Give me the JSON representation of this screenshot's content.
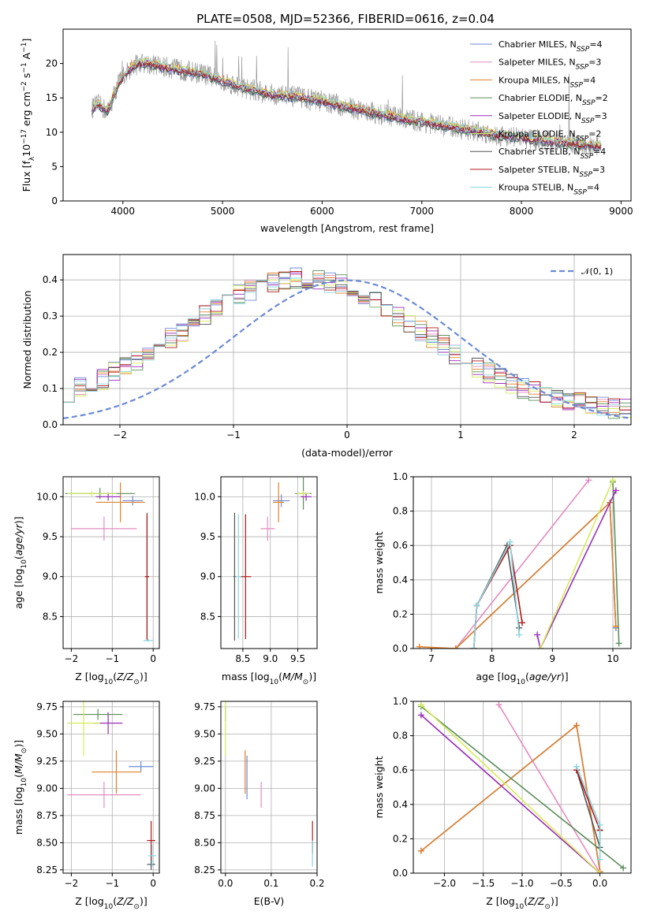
{
  "figure": {
    "title": "PLATE=0508, MJD=52366, FIBERID=0616, z=0.04"
  },
  "colors": {
    "Chabrier MILES": "#6c8ad6",
    "Salpeter MILES": "#e48bc0",
    "Kroupa MILES": "#e0802a",
    "Chabrier ELODIE": "#5c8f5c",
    "Salpeter ELODIE": "#9a2fb8",
    "Kroupa ELODIE": "#d6ea5a",
    "Chabrier STELIB": "#555555",
    "Salpeter STELIB": "#b01a1a",
    "Kroupa STELIB": "#8ad6df",
    "data": "#9a9a9a",
    "normal": "#6c8ad6"
  },
  "legend_spectrum": [
    {
      "name": "Chabrier MILES",
      "nssp": "4"
    },
    {
      "name": "Salpeter MILES",
      "nssp": "3"
    },
    {
      "name": "Kroupa MILES",
      "nssp": "4"
    },
    {
      "name": "Chabrier ELODIE",
      "nssp": "2"
    },
    {
      "name": "Salpeter ELODIE",
      "nssp": "3"
    },
    {
      "name": "Kroupa ELODIE",
      "nssp": "2"
    },
    {
      "name": "Chabrier STELIB",
      "nssp": "4"
    },
    {
      "name": "Salpeter STELIB",
      "nssp": "3"
    },
    {
      "name": "Kroupa STELIB",
      "nssp": "4"
    }
  ],
  "legend_hist": {
    "label": "𝒩(0, 1)"
  },
  "chart_data": [
    {
      "id": "spectrum",
      "type": "line",
      "xlabel": "wavelength [Angstrom, rest frame]",
      "ylabel": "Flux [f_λ 10^-17 erg cm^-2 s^-1 A^-1]",
      "xlim": [
        3400,
        9100
      ],
      "ylim": [
        0,
        25
      ],
      "xticks": [
        4000,
        5000,
        6000,
        7000,
        8000,
        9000
      ],
      "yticks": [
        0,
        5,
        10,
        15,
        20
      ],
      "continuum": [
        [
          3690,
          13.5
        ],
        [
          3750,
          14
        ],
        [
          3850,
          13
        ],
        [
          3950,
          17
        ],
        [
          4050,
          19
        ],
        [
          4150,
          20
        ],
        [
          4250,
          20
        ],
        [
          4400,
          19.5
        ],
        [
          4600,
          19
        ],
        [
          4800,
          18.5
        ],
        [
          5000,
          17.5
        ],
        [
          5200,
          16.5
        ],
        [
          5500,
          15.5
        ],
        [
          5800,
          15
        ],
        [
          6000,
          14.5
        ],
        [
          6200,
          13.8
        ],
        [
          6400,
          13.2
        ],
        [
          6600,
          12.6
        ],
        [
          6800,
          12
        ],
        [
          7000,
          11.5
        ],
        [
          7200,
          11
        ],
        [
          7400,
          10.5
        ],
        [
          7600,
          10
        ],
        [
          7800,
          9.5
        ],
        [
          8000,
          9.2
        ],
        [
          8200,
          8.8
        ],
        [
          8500,
          8.3
        ],
        [
          8800,
          8
        ]
      ]
    },
    {
      "id": "residual-hist",
      "type": "line",
      "xlabel": "(data-model)/error",
      "ylabel": "Normed distribution",
      "xlim": [
        -2.5,
        2.5
      ],
      "ylim": [
        0,
        0.47
      ],
      "xticks": [
        -2,
        -1,
        0,
        1,
        2
      ],
      "yticks": [
        0.0,
        0.1,
        0.2,
        0.3,
        0.4
      ],
      "normal": {
        "mean": 0,
        "sigma": 1
      }
    },
    {
      "id": "age-vs-z",
      "type": "scatter",
      "xlabel": "Z [log10(Z/Z⊙)]",
      "ylabel": "age  [log10(age/yr)]",
      "xlim": [
        -2.2,
        0.15
      ],
      "ylim": [
        8.1,
        10.25
      ],
      "xticks": [
        -2,
        -1,
        0
      ],
      "yticks": [
        8.5,
        9.0,
        9.5,
        10.0
      ],
      "points": [
        {
          "model": "Chabrier MILES",
          "x": -0.5,
          "y": 9.95,
          "xerr": 0.25,
          "yerr": 0.06
        },
        {
          "model": "Salpeter MILES",
          "x": -1.2,
          "y": 9.6,
          "xerr": 0.8,
          "yerr": 0.15
        },
        {
          "model": "Kroupa MILES",
          "x": -0.8,
          "y": 9.93,
          "xerr": 0.6,
          "yerr": 0.25
        },
        {
          "model": "Chabrier ELODIE",
          "x": -1.3,
          "y": 10.04,
          "xerr": 0.85,
          "yerr": 0.07
        },
        {
          "model": "Salpeter ELODIE",
          "x": -1.1,
          "y": 10.0,
          "xerr": 0.3,
          "yerr": 0.05
        },
        {
          "model": "Kroupa ELODIE",
          "x": -1.5,
          "y": 10.04,
          "xerr": 0.6,
          "yerr": 0.03
        },
        {
          "model": "Chabrier STELIB",
          "x": -0.15,
          "y": 9.0,
          "xerr": 0.05,
          "yerr": 0.8
        },
        {
          "model": "Salpeter STELIB",
          "x": -0.15,
          "y": 9.0,
          "xerr": 0.05,
          "yerr": 0.78
        },
        {
          "model": "Kroupa STELIB",
          "x": -0.12,
          "y": 8.2,
          "xerr": 0.12,
          "yerr": 0.02
        }
      ]
    },
    {
      "id": "age-vs-mass",
      "type": "scatter",
      "xlabel": "mass [log10(M/M⊙)]",
      "ylabel": "",
      "xlim": [
        8.1,
        9.85
      ],
      "ylim": [
        8.1,
        10.25
      ],
      "xticks": [
        8.5,
        9.0,
        9.5
      ],
      "yticks": [
        8.5,
        9.0,
        9.5,
        10.0
      ],
      "points": [
        {
          "model": "Chabrier MILES",
          "x": 9.2,
          "y": 9.95,
          "xerr": 0.15,
          "yerr": 0.08
        },
        {
          "model": "Salpeter MILES",
          "x": 8.95,
          "y": 9.6,
          "xerr": 0.13,
          "yerr": 0.15
        },
        {
          "model": "Kroupa MILES",
          "x": 9.15,
          "y": 9.93,
          "xerr": 0.1,
          "yerr": 0.25
        },
        {
          "model": "Chabrier ELODIE",
          "x": 9.6,
          "y": 10.04,
          "xerr": 0.15,
          "yerr": 0.2
        },
        {
          "model": "Salpeter ELODIE",
          "x": 9.65,
          "y": 10.0,
          "xerr": 0.1,
          "yerr": 0.05
        },
        {
          "model": "Kroupa ELODIE",
          "x": 9.6,
          "y": 10.04,
          "xerr": 0.12,
          "yerr": 0.03
        },
        {
          "model": "Chabrier STELIB",
          "x": 8.35,
          "y": 9.0,
          "xerr": 0.02,
          "yerr": 0.8
        },
        {
          "model": "Salpeter STELIB",
          "x": 8.55,
          "y": 9.0,
          "xerr": 0.1,
          "yerr": 0.78
        },
        {
          "model": "Kroupa STELIB",
          "x": 8.42,
          "y": 9.0,
          "xerr": 0.05,
          "yerr": 0.78
        }
      ]
    },
    {
      "id": "weight-vs-age",
      "type": "line",
      "xlabel": "age  [log10(age/yr)]",
      "ylabel": "mass weight",
      "xlim": [
        6.7,
        10.3
      ],
      "ylim": [
        0,
        1
      ],
      "xticks": [
        7,
        8,
        9,
        10
      ],
      "yticks": [
        0.0,
        0.2,
        0.4,
        0.6,
        0.8,
        1.0
      ],
      "series": [
        {
          "model": "Chabrier MILES",
          "points": [
            [
              7.4,
              0
            ],
            [
              9.95,
              0.85
            ],
            [
              10.05,
              0.12
            ]
          ]
        },
        {
          "model": "Salpeter MILES",
          "points": [
            [
              7.4,
              0
            ],
            [
              9.6,
              0.98
            ]
          ]
        },
        {
          "model": "Kroupa MILES",
          "points": [
            [
              6.8,
              0.01
            ],
            [
              7.4,
              0
            ],
            [
              9.95,
              0.85
            ],
            [
              10.05,
              0.13
            ]
          ]
        },
        {
          "model": "Chabrier ELODIE",
          "points": [
            [
              10.0,
              0.97
            ],
            [
              10.1,
              0.03
            ]
          ]
        },
        {
          "model": "Salpeter ELODIE",
          "points": [
            [
              8.75,
              0.08
            ],
            [
              8.8,
              0
            ],
            [
              10.05,
              0.92
            ]
          ]
        },
        {
          "model": "Kroupa ELODIE",
          "points": [
            [
              8.8,
              0
            ],
            [
              10.0,
              0.98
            ]
          ]
        },
        {
          "model": "Chabrier STELIB",
          "points": [
            [
              7.7,
              0
            ],
            [
              7.75,
              0.25
            ],
            [
              8.25,
              0.6
            ],
            [
              8.45,
              0.12
            ]
          ]
        },
        {
          "model": "Salpeter STELIB",
          "points": [
            [
              7.7,
              0
            ],
            [
              7.75,
              0.25
            ],
            [
              8.3,
              0.6
            ],
            [
              8.5,
              0.15
            ]
          ]
        },
        {
          "model": "Kroupa STELIB",
          "points": [
            [
              7.7,
              0
            ],
            [
              7.75,
              0.25
            ],
            [
              8.3,
              0.62
            ],
            [
              8.45,
              0.08
            ]
          ]
        }
      ]
    },
    {
      "id": "mass-vs-z",
      "type": "scatter",
      "xlabel": "Z [log10(Z/Z⊙)]",
      "ylabel": "mass [log10(M/M⊙)]",
      "xlim": [
        -2.2,
        0.15
      ],
      "ylim": [
        8.22,
        9.8
      ],
      "xticks": [
        -2,
        -1,
        0
      ],
      "yticks": [
        8.25,
        8.5,
        8.75,
        9.0,
        9.25,
        9.5,
        9.75
      ],
      "points": [
        {
          "model": "Chabrier MILES",
          "x": -0.3,
          "y": 9.2,
          "xerr": 0.3,
          "yerr": 0.05
        },
        {
          "model": "Salpeter MILES",
          "x": -1.2,
          "y": 8.94,
          "xerr": 0.9,
          "yerr": 0.12
        },
        {
          "model": "Kroupa MILES",
          "x": -0.9,
          "y": 9.15,
          "xerr": 0.6,
          "yerr": 0.2
        },
        {
          "model": "Chabrier ELODIE",
          "x": -1.35,
          "y": 9.68,
          "xerr": 0.6,
          "yerr": 0.05
        },
        {
          "model": "Salpeter ELODIE",
          "x": -1.1,
          "y": 9.6,
          "xerr": 0.35,
          "yerr": 0.1
        },
        {
          "model": "Kroupa ELODIE",
          "x": -1.7,
          "y": 9.6,
          "xerr": 0.4,
          "yerr": 0.3
        },
        {
          "model": "Chabrier STELIB",
          "x": -0.05,
          "y": 8.3,
          "xerr": 0.1,
          "yerr": 0.05
        },
        {
          "model": "Salpeter STELIB",
          "x": -0.05,
          "y": 8.52,
          "xerr": 0.1,
          "yerr": 0.18
        },
        {
          "model": "Kroupa STELIB",
          "x": -0.03,
          "y": 8.38,
          "xerr": 0.1,
          "yerr": 0.1
        }
      ]
    },
    {
      "id": "mass-vs-ebv",
      "type": "scatter",
      "xlabel": "E(B-V)",
      "ylabel": "",
      "xlim": [
        -0.01,
        0.2
      ],
      "ylim": [
        8.22,
        9.8
      ],
      "xticks": [
        0.0,
        0.1,
        0.2
      ],
      "yticks": [
        8.25,
        8.5,
        8.75,
        9.0,
        9.25,
        9.5,
        9.75
      ],
      "points": [
        {
          "model": "Chabrier MILES",
          "x": 0.047,
          "y": 9.1,
          "xerr": 0,
          "yerr": 0.2
        },
        {
          "model": "Salpeter MILES",
          "x": 0.078,
          "y": 8.94,
          "xerr": 0,
          "yerr": 0.12
        },
        {
          "model": "Kroupa MILES",
          "x": 0.043,
          "y": 9.15,
          "xerr": 0,
          "yerr": 0.2
        },
        {
          "model": "Chabrier ELODIE",
          "x": 0.0,
          "y": 9.68,
          "xerr": 0,
          "yerr": 0.06
        },
        {
          "model": "Kroupa ELODIE",
          "x": 0.0,
          "y": 9.55,
          "xerr": 0,
          "yerr": 0.25
        },
        {
          "model": "Salpeter STELIB",
          "x": 0.19,
          "y": 8.55,
          "xerr": 0,
          "yerr": 0.15
        },
        {
          "model": "Kroupa STELIB",
          "x": 0.19,
          "y": 8.4,
          "xerr": 0,
          "yerr": 0.12
        }
      ]
    },
    {
      "id": "weight-vs-z",
      "type": "line",
      "xlabel": "Z [log10(Z/Z⊙)]",
      "ylabel": "mass weight",
      "xlim": [
        -2.4,
        0.4
      ],
      "ylim": [
        0,
        1
      ],
      "xticks": [
        -2.0,
        -1.5,
        -1.0,
        -0.5,
        0.0
      ],
      "yticks": [
        0.0,
        0.2,
        0.4,
        0.6,
        0.8,
        1.0
      ],
      "series": [
        {
          "model": "Chabrier MILES",
          "points": [
            [
              -2.3,
              0.13
            ],
            [
              -0.3,
              0.86
            ],
            [
              0.0,
              0.01
            ]
          ]
        },
        {
          "model": "Salpeter MILES",
          "points": [
            [
              -1.3,
              0.98
            ],
            [
              0.0,
              0.0
            ]
          ]
        },
        {
          "model": "Kroupa MILES",
          "points": [
            [
              -2.3,
              0.13
            ],
            [
              -0.3,
              0.86
            ],
            [
              0.0,
              0.01
            ]
          ]
        },
        {
          "model": "Chabrier ELODIE",
          "points": [
            [
              -2.3,
              0.97
            ],
            [
              0.3,
              0.03
            ]
          ]
        },
        {
          "model": "Salpeter ELODIE",
          "points": [
            [
              -2.3,
              0.92
            ],
            [
              0.0,
              0.0
            ]
          ]
        },
        {
          "model": "Kroupa ELODIE",
          "points": [
            [
              -2.3,
              0.98
            ],
            [
              0.0,
              0.0
            ]
          ]
        },
        {
          "model": "Chabrier STELIB",
          "points": [
            [
              -0.3,
              0.6
            ],
            [
              0.0,
              0.15
            ],
            [
              0.0,
              0.25
            ]
          ]
        },
        {
          "model": "Salpeter STELIB",
          "points": [
            [
              -0.3,
              0.6
            ],
            [
              0.0,
              0.25
            ]
          ]
        },
        {
          "model": "Kroupa STELIB",
          "points": [
            [
              -0.3,
              0.62
            ],
            [
              0.0,
              0.28
            ],
            [
              0.0,
              0.08
            ]
          ]
        }
      ]
    }
  ]
}
